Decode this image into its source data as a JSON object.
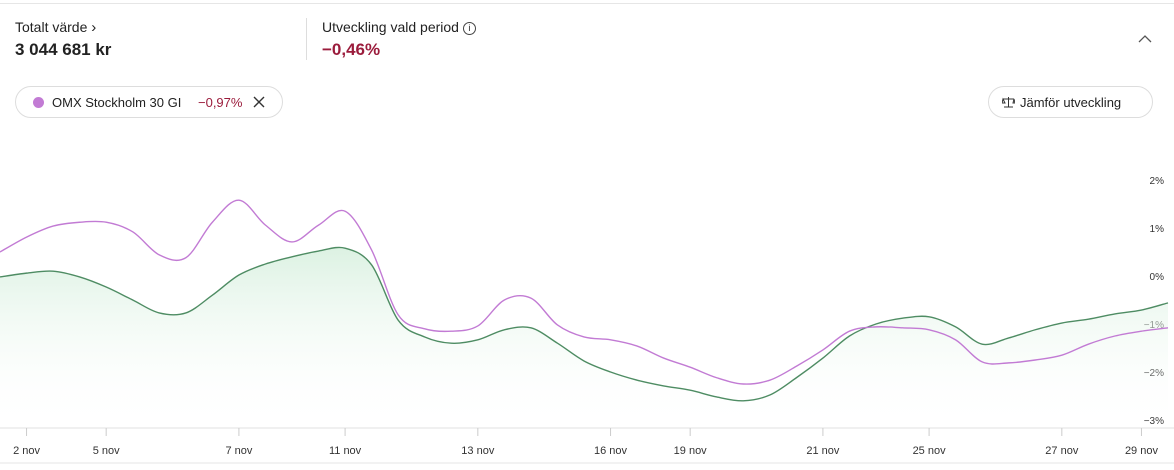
{
  "header": {
    "total_label": "Totalt värde",
    "total_value": "3 044 681 kr",
    "period_label": "Utveckling vald period",
    "period_value": "−0,46%"
  },
  "compare": {
    "index_change": "−0,97%",
    "button": "Jämför utveckling"
  },
  "chart_data": {
    "type": "line",
    "categories": [
      null,
      "2 nov",
      null,
      null,
      "5 nov",
      null,
      null,
      null,
      null,
      "7 nov",
      null,
      null,
      null,
      "11 nov",
      null,
      null,
      null,
      null,
      "13 nov",
      null,
      null,
      null,
      null,
      "16 nov",
      null,
      null,
      "19 nov",
      null,
      null,
      null,
      null,
      "21 nov",
      null,
      null,
      null,
      "25 nov",
      null,
      null,
      null,
      null,
      "27 nov",
      null,
      null,
      "29 nov",
      null
    ],
    "series": [
      {
        "name": "OMX Stockholm 30 GI",
        "color": "#c27bd4",
        "values": [
          0.5,
          0.81,
          1.04,
          1.12,
          1.12,
          0.92,
          0.44,
          0.38,
          1.12,
          1.58,
          1.06,
          0.71,
          1.06,
          1.35,
          0.54,
          -0.81,
          -1.1,
          -1.15,
          -1.04,
          -0.5,
          -0.46,
          -1.02,
          -1.27,
          -1.33,
          -1.46,
          -1.71,
          -1.9,
          -2.12,
          -2.25,
          -2.17,
          -1.88,
          -1.54,
          -1.15,
          -1.06,
          -1.08,
          -1.12,
          -1.33,
          -1.79,
          -1.81,
          -1.75,
          -1.65,
          -1.42,
          -1.25,
          -1.15,
          -1.08
        ]
      },
      {
        "color": "#4e8c63",
        "values": [
          -0.02,
          0.06,
          0.1,
          -0.02,
          -0.23,
          -0.5,
          -0.77,
          -0.77,
          -0.4,
          0.02,
          0.25,
          0.4,
          0.52,
          0.58,
          0.23,
          -0.92,
          -1.27,
          -1.4,
          -1.33,
          -1.12,
          -1.08,
          -1.4,
          -1.77,
          -2.0,
          -2.17,
          -2.29,
          -2.38,
          -2.52,
          -2.6,
          -2.48,
          -2.12,
          -1.71,
          -1.25,
          -1.0,
          -0.88,
          -0.85,
          -1.06,
          -1.42,
          -1.29,
          -1.12,
          -0.98,
          -0.9,
          -0.79,
          -0.71,
          -0.56
        ]
      }
    ],
    "ylim": [
      -3.2,
      3
    ],
    "yticks": [
      {
        "value": 2,
        "label": "2%"
      },
      {
        "value": 1,
        "label": "1%"
      },
      {
        "value": 0,
        "label": "0%"
      },
      {
        "value": -1,
        "label": "−1%"
      },
      {
        "value": -2,
        "label": "−2%"
      },
      {
        "value": -3,
        "label": "−3%"
      }
    ],
    "grid": false
  }
}
